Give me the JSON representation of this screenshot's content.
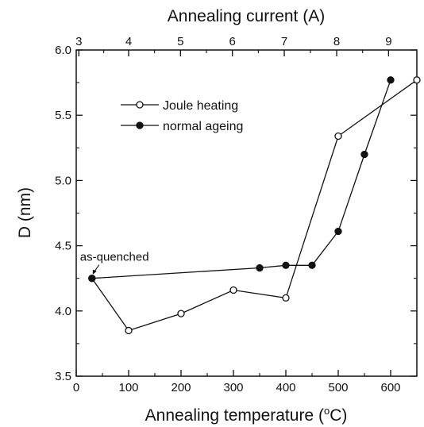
{
  "chart_data": {
    "type": "line",
    "xlabel": "Annealing temperature (°C)",
    "xlabel_parts": {
      "prefix": "Annealing temperature (",
      "sup": "o",
      "suffix": "C)"
    },
    "ylabel": "D (nm)",
    "top_xlabel": "Annealing current (A)",
    "xlim": [
      0,
      650
    ],
    "ylim": [
      3.5,
      6.0
    ],
    "x_ticks": [
      0,
      100,
      200,
      300,
      400,
      500,
      600
    ],
    "y_ticks": [
      3.5,
      4.0,
      4.5,
      5.0,
      5.5,
      6.0
    ],
    "y_tick_labels": [
      "3.5",
      "4.0",
      "4.5",
      "5.0",
      "5.5",
      "6.0"
    ],
    "top_ticks": [
      3,
      4,
      5,
      6,
      7,
      8,
      9
    ],
    "top_tick_positions_in_x_units": [
      5,
      100,
      199,
      298,
      397,
      497,
      596
    ],
    "grid": false,
    "legend_position": "upper-left",
    "series": [
      {
        "name": "Joule heating",
        "marker": "open-circle",
        "x": [
          30,
          100,
          200,
          300,
          400,
          500,
          650
        ],
        "y": [
          4.25,
          3.85,
          3.98,
          4.16,
          4.1,
          5.34,
          5.77
        ]
      },
      {
        "name": "normal ageing",
        "marker": "filled-circle",
        "x": [
          30,
          350,
          400,
          450,
          500,
          550,
          600
        ],
        "y": [
          4.25,
          4.33,
          4.35,
          4.35,
          4.61,
          5.2,
          5.77
        ]
      }
    ],
    "annotations": [
      {
        "text": "as-quenched",
        "x": 30,
        "y": 4.25
      }
    ]
  }
}
